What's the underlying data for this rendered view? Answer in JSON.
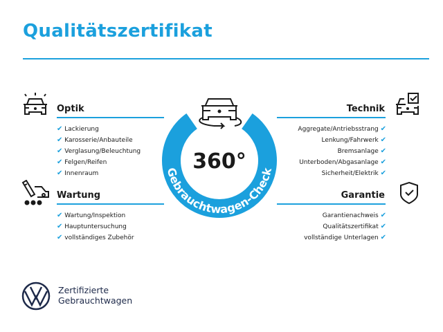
{
  "title": "Qualitätszertifikat",
  "center": {
    "number": "360°",
    "ring_text": "Gebrauchtwagen-Check"
  },
  "sections": {
    "optik": {
      "label": "Optik",
      "icon": "car-lights-icon",
      "items": [
        "Lackierung",
        "Karosserie/Anbauteile",
        "Verglasung/Beleuchtung",
        "Felgen/Reifen",
        "Innenraum"
      ]
    },
    "wartung": {
      "label": "Wartung",
      "icon": "maintenance-icon",
      "items": [
        "Wartung/Inspektion",
        "Hauptuntersuchung",
        "vollständiges Zubehör"
      ]
    },
    "technik": {
      "label": "Technik",
      "icon": "car-checkbox-icon",
      "items": [
        "Aggregate/Antriebsstrang",
        "Lenkung/Fahrwerk",
        "Bremsanlage",
        "Unterboden/Abgasanlage",
        "Sicherheit/Elektrik"
      ]
    },
    "garantie": {
      "label": "Garantie",
      "icon": "shield-check-icon",
      "items": [
        "Garantienachweis",
        "Qualitätszertifikat",
        "vollständige Unterlagen"
      ]
    }
  },
  "check_glyph": "✔",
  "brand": {
    "line1": "Zertifizierte",
    "line2": "Gebrauchtwagen"
  },
  "colors": {
    "accent": "#1ba0dd",
    "text": "#1a1a1a",
    "brand": "#1e2a4a"
  }
}
